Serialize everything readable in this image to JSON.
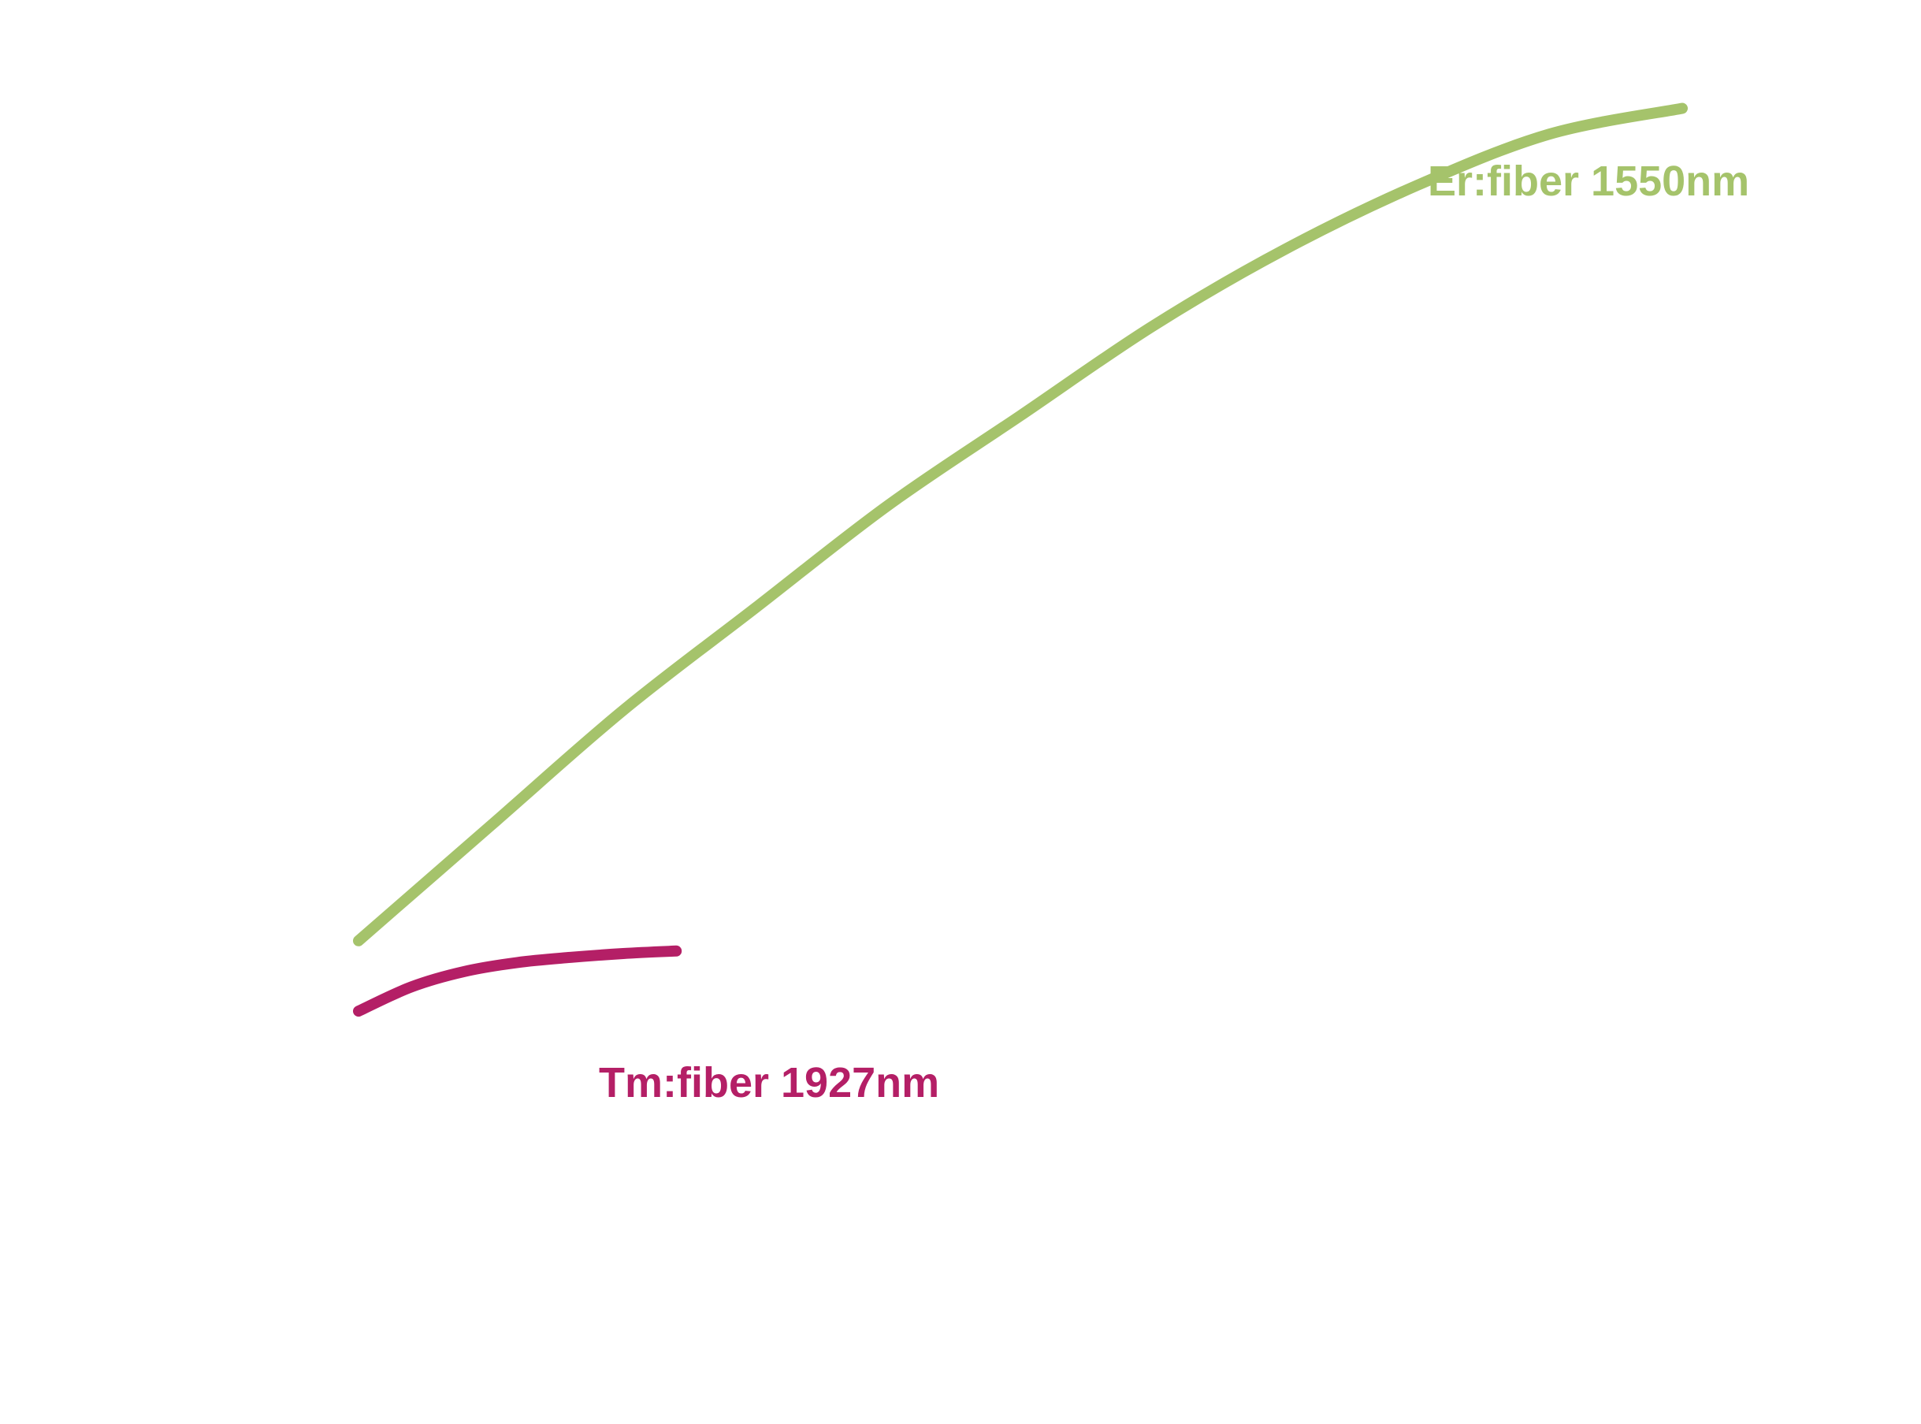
{
  "chart_data": {
    "type": "line",
    "title": "",
    "xlabel": "",
    "ylabel": "",
    "grid": false,
    "legend": "none",
    "xlim": [
      0,
      100
    ],
    "ylim": [
      0,
      100
    ],
    "series": [
      {
        "name": "Er:fiber 1550nm",
        "color": "#a5c36b",
        "x": [
          0,
          10,
          20,
          30,
          40,
          50,
          60,
          70,
          80,
          90,
          100
        ],
        "y": [
          29,
          38,
          47,
          55,
          63,
          70,
          77,
          83,
          88,
          92,
          94
        ]
      },
      {
        "name": "Tm:fiber 1927nm",
        "color": "#b41f66",
        "x": [
          0,
          4,
          8,
          12,
          16,
          20,
          24
        ],
        "y": [
          23.5,
          25.4,
          26.6,
          27.3,
          27.7,
          28.0,
          28.2
        ]
      }
    ]
  }
}
